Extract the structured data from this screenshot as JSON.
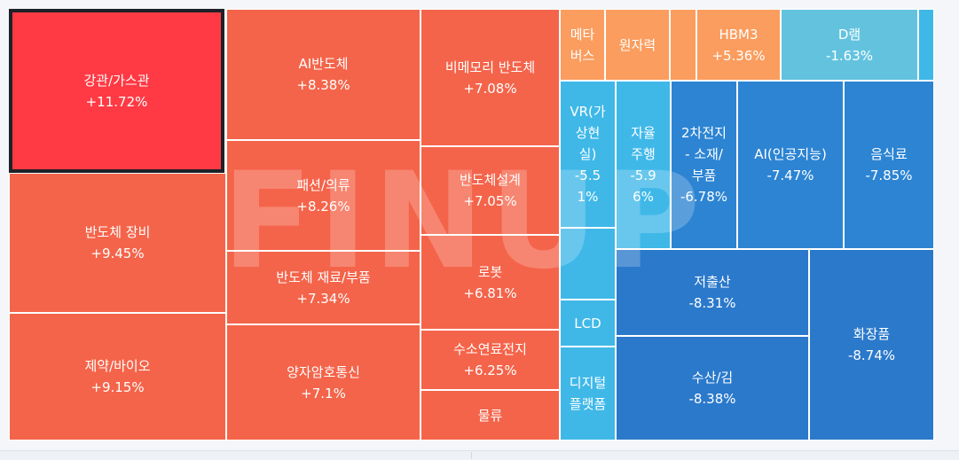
{
  "watermark": "FINUP",
  "colors": {
    "selected_red": "#ff3a44",
    "up_orange": "#f4644a",
    "light_orange": "#fb9d5e",
    "light_blue": "#3fb8e8",
    "pale_blue": "#63c3df",
    "mid_blue": "#2c84d3",
    "deep_blue": "#2b79cb"
  },
  "tiles": [
    {
      "name": "강관/가스관",
      "change": "+11.72%"
    },
    {
      "name": "반도체 장비",
      "change": "+9.45%"
    },
    {
      "name": "제약/바이오",
      "change": "+9.15%"
    },
    {
      "name": "AI반도체",
      "change": "+8.38%"
    },
    {
      "name": "패션/의류",
      "change": "+8.26%"
    },
    {
      "name": "반도체 재료/부품",
      "change": "+7.34%"
    },
    {
      "name": "양자암호통신",
      "change": "+7.1%"
    },
    {
      "name": "비메모리 반도체",
      "change": "+7.08%"
    },
    {
      "name": "반도체설계",
      "change": "+7.05%"
    },
    {
      "name": "로봇",
      "change": "+6.81%"
    },
    {
      "name": "수소연료전지",
      "change": "+6.25%"
    },
    {
      "name": "물류",
      "change": ""
    },
    {
      "name": "메타\n버스",
      "change": ""
    },
    {
      "name": "원자력",
      "change": ""
    },
    {
      "name": "",
      "change": ""
    },
    {
      "name": "HBM3",
      "change": "+5.36%"
    },
    {
      "name": "D램",
      "change": "-1.63%"
    },
    {
      "name": "",
      "change": ""
    },
    {
      "name": "VR(가\n상현\n실)",
      "change": "-5.5\n1%"
    },
    {
      "name": "",
      "change": ""
    },
    {
      "name": "LCD",
      "change": ""
    },
    {
      "name": "디지털\n플랫폼",
      "change": ""
    },
    {
      "name": "자율\n주행",
      "change": "-5.9\n6%"
    },
    {
      "name": "2차전지\n- 소재/\n부품",
      "change": "-6.78%"
    },
    {
      "name": "AI(인공지능)",
      "change": "-7.47%"
    },
    {
      "name": "음식료",
      "change": "-7.85%"
    },
    {
      "name": "저출산",
      "change": "-8.31%"
    },
    {
      "name": "수산/김",
      "change": "-8.38%"
    },
    {
      "name": "화장품",
      "change": "-8.74%"
    }
  ]
}
